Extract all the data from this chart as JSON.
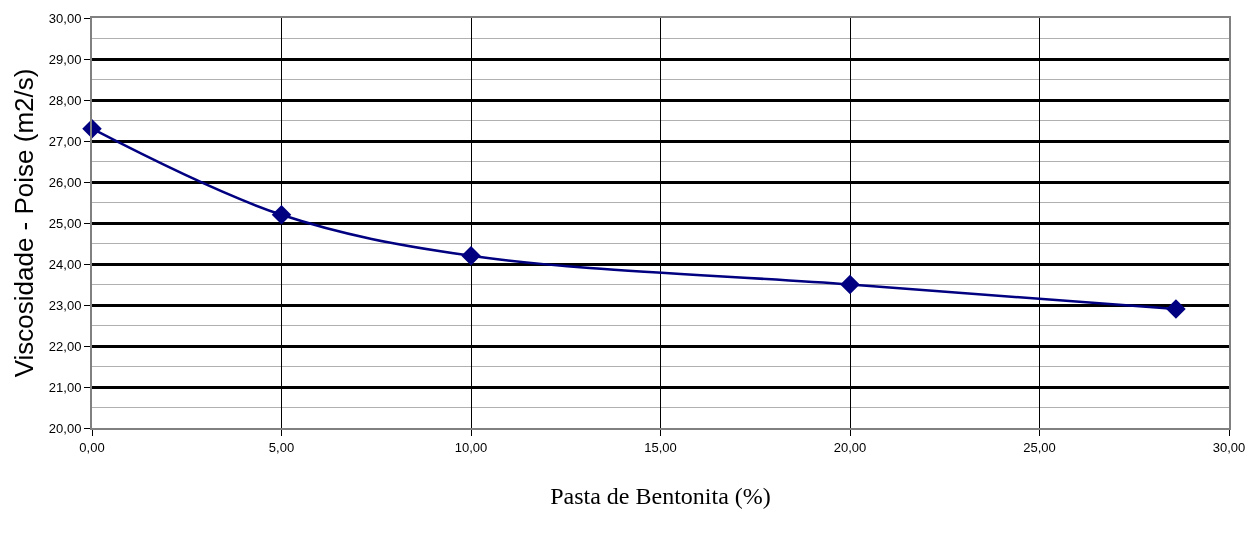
{
  "chart_data": {
    "type": "line",
    "xlabel": "Pasta de Bentonita (%)",
    "ylabel": "Viscosidade - Poise (m2/s)",
    "x": [
      0,
      5,
      10,
      20,
      28.6
    ],
    "series": [
      {
        "color": "#000080",
        "values": [
          27.3,
          25.2,
          24.2,
          23.5,
          22.9
        ]
      }
    ],
    "xlim": [
      0,
      30
    ],
    "xticks": [
      {
        "value": 0,
        "label": "0,00"
      },
      {
        "value": 5,
        "label": "5,00"
      },
      {
        "value": 10,
        "label": "10,00"
      },
      {
        "value": 15,
        "label": "15,00"
      },
      {
        "value": 20,
        "label": "20,00"
      },
      {
        "value": 25,
        "label": "25,00"
      },
      {
        "value": 30,
        "label": "30,00"
      }
    ],
    "ylim": [
      20,
      30
    ],
    "yticks": [
      {
        "value": 20,
        "label": "20,00"
      },
      {
        "value": 21,
        "label": "21,00"
      },
      {
        "value": 22,
        "label": "22,00"
      },
      {
        "value": 23,
        "label": "23,00"
      },
      {
        "value": 24,
        "label": "24,00"
      },
      {
        "value": 25,
        "label": "25,00"
      },
      {
        "value": 26,
        "label": "26,00"
      },
      {
        "value": 27,
        "label": "27,00"
      },
      {
        "value": 28,
        "label": "28,00"
      },
      {
        "value": 29,
        "label": "29,00"
      },
      {
        "value": 30,
        "label": "30,00"
      }
    ],
    "grid": true,
    "marker": "diamond",
    "line_style": "solid"
  }
}
